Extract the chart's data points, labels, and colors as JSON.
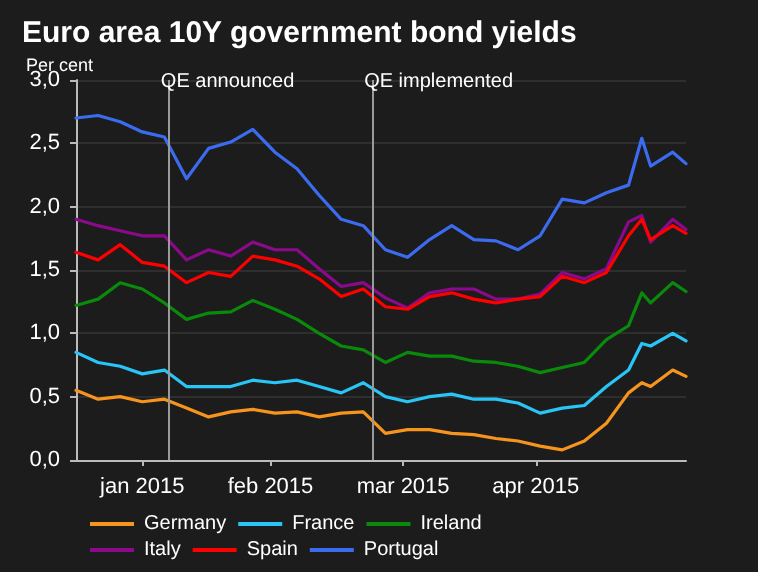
{
  "chart_data": {
    "type": "line",
    "title": "Euro area 10Y government bond yields",
    "ylabel": "Per cent",
    "x": [
      "2015-01-01",
      "2015-01-06",
      "2015-01-11",
      "2015-01-16",
      "2015-01-21",
      "2015-01-26",
      "2015-01-31",
      "2015-02-05",
      "2015-02-10",
      "2015-02-15",
      "2015-02-20",
      "2015-02-25",
      "2015-03-02",
      "2015-03-07",
      "2015-03-12",
      "2015-03-17",
      "2015-03-22",
      "2015-03-27",
      "2015-04-01",
      "2015-04-06",
      "2015-04-11",
      "2015-04-16",
      "2015-04-21",
      "2015-04-26",
      "2015-05-01",
      "2015-05-06",
      "2015-05-09",
      "2015-05-11",
      "2015-05-16",
      "2015-05-19"
    ],
    "series": [
      {
        "name": "Germany",
        "color": "#f7941d",
        "values": [
          0.55,
          0.48,
          0.5,
          0.46,
          0.48,
          0.41,
          0.34,
          0.38,
          0.4,
          0.37,
          0.38,
          0.34,
          0.37,
          0.38,
          0.21,
          0.24,
          0.24,
          0.21,
          0.2,
          0.17,
          0.15,
          0.11,
          0.08,
          0.15,
          0.29,
          0.53,
          0.61,
          0.58,
          0.71,
          0.66
        ]
      },
      {
        "name": "France",
        "color": "#29c5f6",
        "values": [
          0.85,
          0.77,
          0.74,
          0.68,
          0.71,
          0.58,
          0.58,
          0.58,
          0.63,
          0.61,
          0.63,
          0.58,
          0.53,
          0.61,
          0.5,
          0.46,
          0.5,
          0.52,
          0.48,
          0.48,
          0.45,
          0.37,
          0.41,
          0.43,
          0.58,
          0.71,
          0.92,
          0.9,
          1.0,
          0.94
        ]
      },
      {
        "name": "Ireland",
        "color": "#0a8a0a",
        "values": [
          1.22,
          1.27,
          1.4,
          1.35,
          1.24,
          1.11,
          1.16,
          1.17,
          1.26,
          1.19,
          1.11,
          1.0,
          0.9,
          0.87,
          0.77,
          0.85,
          0.82,
          0.82,
          0.78,
          0.77,
          0.74,
          0.69,
          0.73,
          0.77,
          0.95,
          1.06,
          1.32,
          1.24,
          1.4,
          1.33
        ]
      },
      {
        "name": "Italy",
        "color": "#8b0a8b",
        "values": [
          1.9,
          1.85,
          1.81,
          1.77,
          1.77,
          1.58,
          1.66,
          1.61,
          1.72,
          1.66,
          1.66,
          1.51,
          1.37,
          1.4,
          1.28,
          1.2,
          1.32,
          1.35,
          1.35,
          1.27,
          1.27,
          1.31,
          1.48,
          1.43,
          1.51,
          1.88,
          1.93,
          1.72,
          1.9,
          1.82
        ]
      },
      {
        "name": "Spain",
        "color": "#ff0000",
        "values": [
          1.64,
          1.58,
          1.7,
          1.56,
          1.53,
          1.4,
          1.48,
          1.45,
          1.61,
          1.58,
          1.53,
          1.43,
          1.29,
          1.35,
          1.21,
          1.19,
          1.29,
          1.32,
          1.27,
          1.24,
          1.27,
          1.29,
          1.45,
          1.4,
          1.48,
          1.77,
          1.9,
          1.74,
          1.85,
          1.79
        ]
      },
      {
        "name": "Portugal",
        "color": "#3b6cf0",
        "values": [
          2.7,
          2.72,
          2.67,
          2.59,
          2.55,
          2.22,
          2.46,
          2.51,
          2.61,
          2.43,
          2.3,
          2.09,
          1.9,
          1.85,
          1.66,
          1.6,
          1.74,
          1.85,
          1.74,
          1.73,
          1.66,
          1.77,
          2.06,
          2.03,
          2.11,
          2.17,
          2.54,
          2.32,
          2.43,
          2.34
        ]
      }
    ],
    "xlim": [
      "2015-01-01",
      "2015-05-19"
    ],
    "xticks": [
      {
        "value": "2015-01-16",
        "label": "jan 2015"
      },
      {
        "value": "2015-02-14",
        "label": "feb 2015"
      },
      {
        "value": "2015-03-16",
        "label": "mar 2015"
      },
      {
        "value": "2015-04-15",
        "label": "apr 2015"
      }
    ],
    "ylim": [
      0,
      3
    ],
    "yticks": [
      {
        "value": 0,
        "label": "0,0"
      },
      {
        "value": 0.5,
        "label": "0,5"
      },
      {
        "value": 1,
        "label": "1,0"
      },
      {
        "value": 1.5,
        "label": "1,5"
      },
      {
        "value": 2,
        "label": "2,0"
      },
      {
        "value": 2.5,
        "label": "2,5"
      },
      {
        "value": 3,
        "label": "3,0"
      }
    ],
    "ref_lines": [
      {
        "axis": "x",
        "value": "2015-01-22",
        "label": "QE announced",
        "color": "#9a9a9a"
      },
      {
        "axis": "x",
        "value": "2015-03-09",
        "label": "QE implemented",
        "color": "#9a9a9a"
      }
    ],
    "grid": "y",
    "legend": "bottom",
    "marker": "none",
    "line_style": "solid"
  }
}
